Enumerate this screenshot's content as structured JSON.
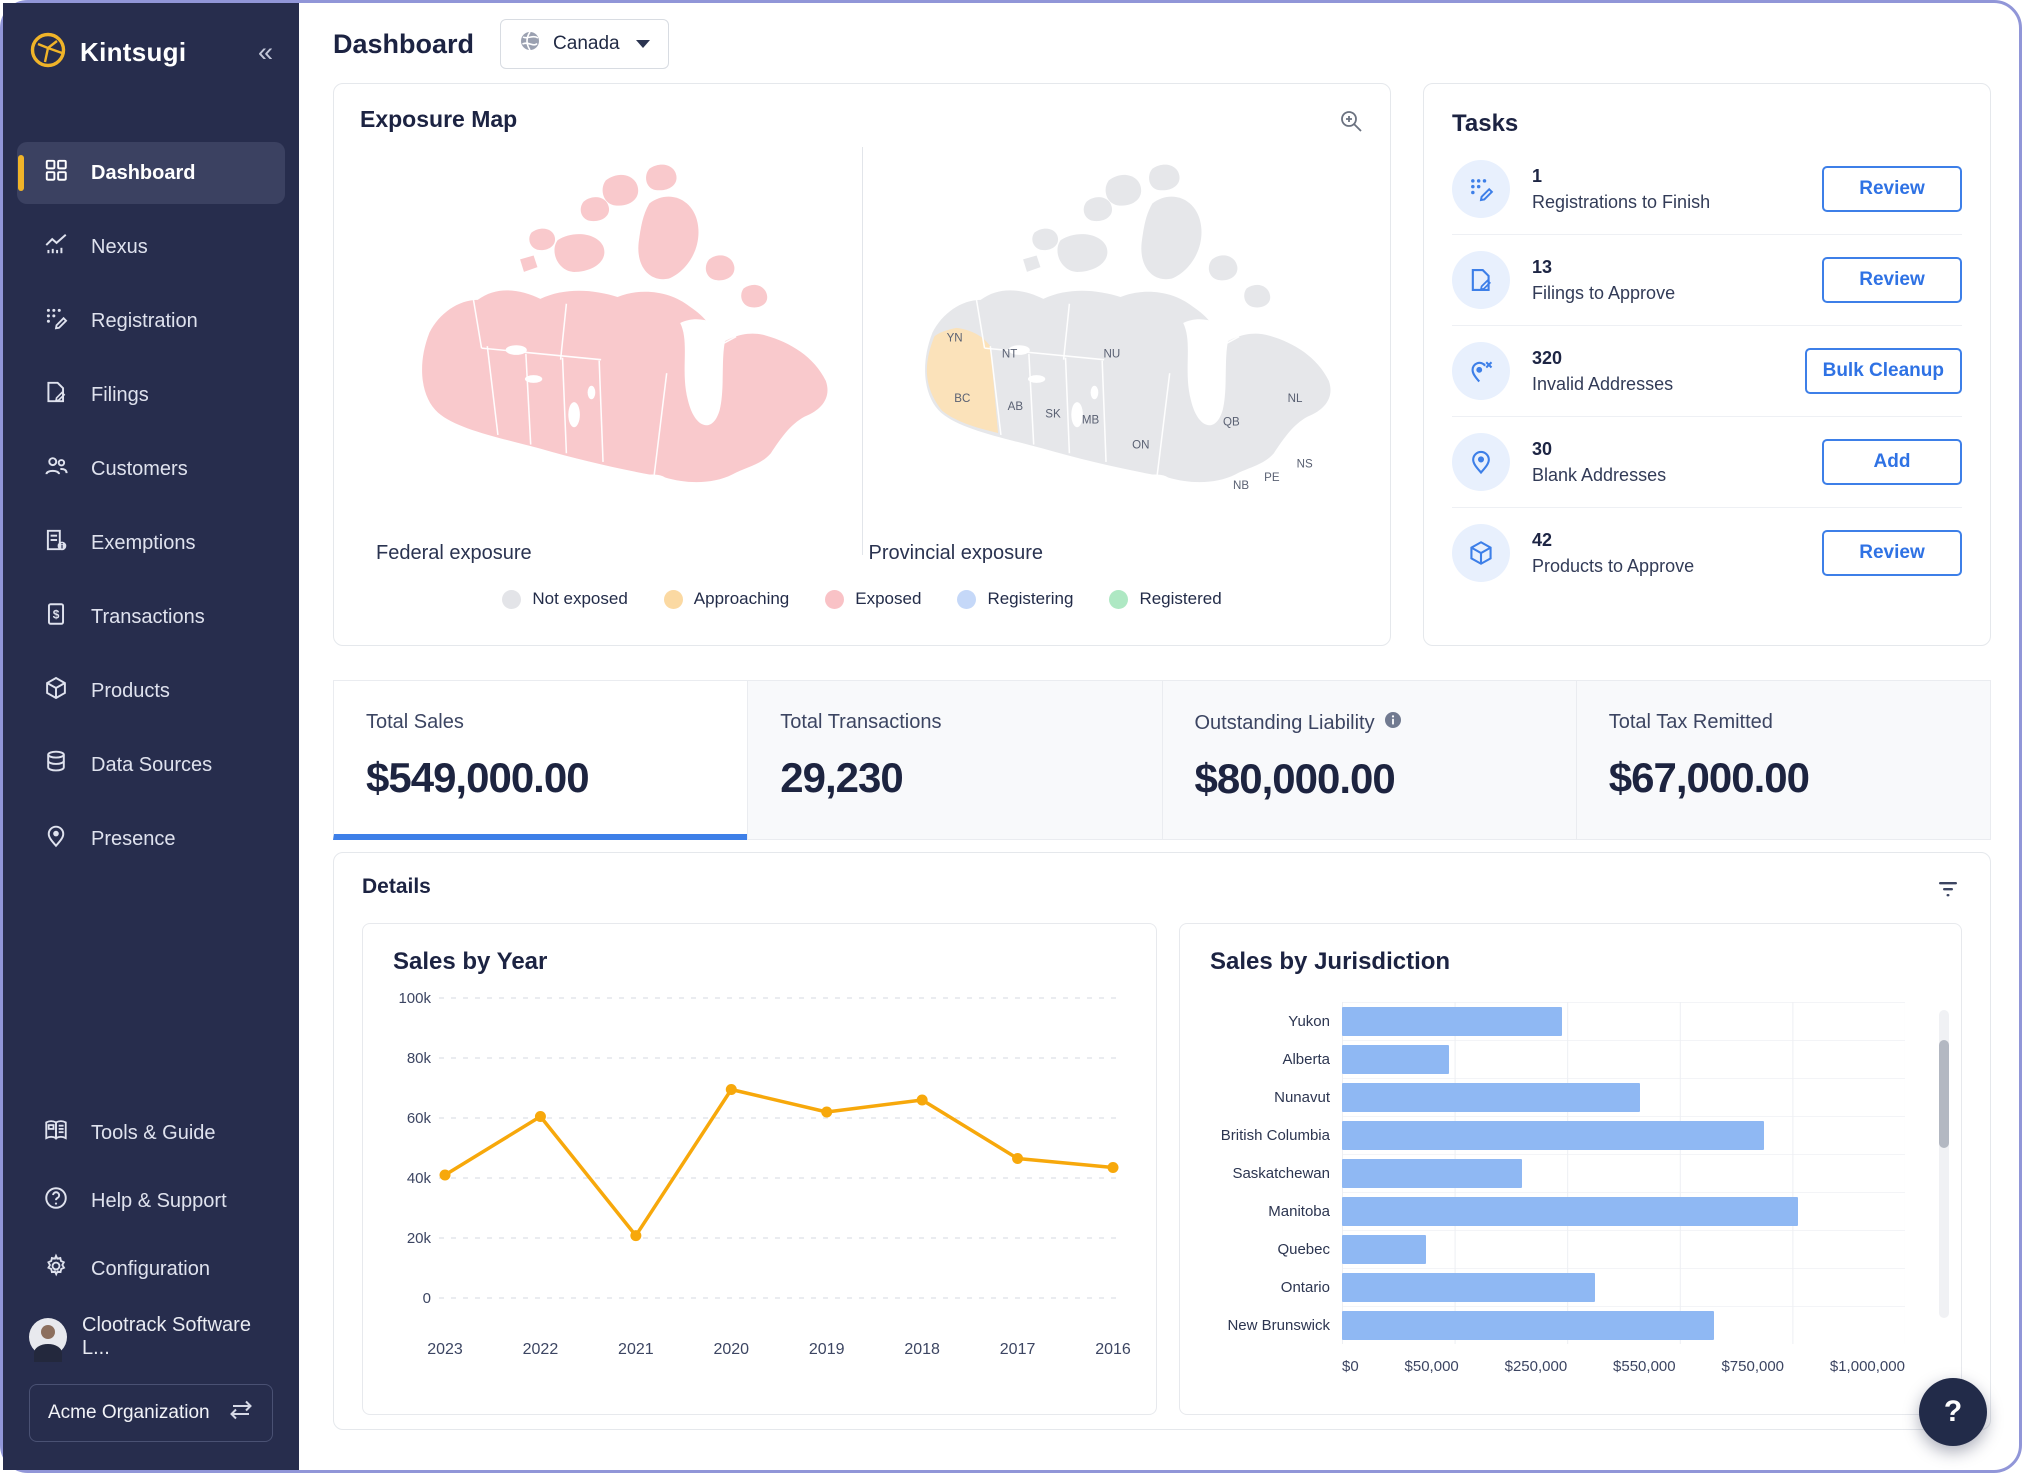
{
  "app": {
    "name": "Kintsugi",
    "logo_icon": "kintsugi-circle-icon",
    "collapse_icon": "chevrons-left-icon"
  },
  "sidebar": {
    "items": [
      {
        "label": "Dashboard",
        "icon": "dashboard",
        "active": true
      },
      {
        "label": "Nexus",
        "icon": "nexus",
        "active": false
      },
      {
        "label": "Registration",
        "icon": "registration",
        "active": false
      },
      {
        "label": "Filings",
        "icon": "filings",
        "active": false
      },
      {
        "label": "Customers",
        "icon": "customers",
        "active": false
      },
      {
        "label": "Exemptions",
        "icon": "exemptions",
        "active": false
      },
      {
        "label": "Transactions",
        "icon": "transactions",
        "active": false
      },
      {
        "label": "Products",
        "icon": "products",
        "active": false
      },
      {
        "label": "Data Sources",
        "icon": "data-sources",
        "active": false
      },
      {
        "label": "Presence",
        "icon": "presence",
        "active": false
      }
    ],
    "footer_items": [
      {
        "label": "Tools & Guide",
        "icon": "tools-guide"
      },
      {
        "label": "Help & Support",
        "icon": "help-support"
      },
      {
        "label": "Configuration",
        "icon": "configuration"
      }
    ],
    "profile": {
      "label": "Clootrack Software L...",
      "avatar_icon": "user-avatar"
    },
    "org": {
      "label": "Acme Organization",
      "swap_icon": "swap-arrows-icon"
    }
  },
  "header": {
    "title": "Dashboard",
    "country": "Canada",
    "country_icon": "globe-icon",
    "caret_icon": "caret-down-icon"
  },
  "exposure_map": {
    "title": "Exposure Map",
    "zoom_icon": "magnifier-plus-icon",
    "federal_label": "Federal exposure",
    "provincial_label": "Provincial exposure",
    "province_labels": [
      "YN",
      "NT",
      "NU",
      "BC",
      "AB",
      "SK",
      "MB",
      "ON",
      "QB",
      "NL",
      "NB",
      "PE",
      "NS"
    ],
    "federal_status": "Exposed",
    "provincial_highlight": {
      "province": "BC",
      "status": "Approaching"
    },
    "colors": {
      "federal_fill": "#f9c9cc",
      "provincial_fill": "#e6e7ea",
      "bc_fill": "#fbe2ba"
    },
    "legend": [
      {
        "label": "Not exposed",
        "color": "#e3e4e8"
      },
      {
        "label": "Approaching",
        "color": "#fbd9a2"
      },
      {
        "label": "Exposed",
        "color": "#f9c2c6"
      },
      {
        "label": "Registering",
        "color": "#c5d8f8"
      },
      {
        "label": "Registered",
        "color": "#aee8c3"
      }
    ]
  },
  "tasks": {
    "title": "Tasks",
    "items": [
      {
        "count": "1",
        "label": "Registrations to Finish",
        "action": "Review",
        "icon": "task-registration"
      },
      {
        "count": "13",
        "label": "Filings to Approve",
        "action": "Review",
        "icon": "task-filing"
      },
      {
        "count": "320",
        "label": "Invalid Addresses",
        "action": "Bulk Cleanup",
        "icon": "task-pin-x"
      },
      {
        "count": "30",
        "label": "Blank Addresses",
        "action": "Add",
        "icon": "task-pin"
      },
      {
        "count": "42",
        "label": "Products to Approve",
        "action": "Review",
        "icon": "task-box"
      }
    ]
  },
  "stats": [
    {
      "label": "Total Sales",
      "value": "$549,000.00",
      "active": true,
      "info": false
    },
    {
      "label": "Total Transactions",
      "value": "29,230",
      "active": false,
      "info": false
    },
    {
      "label": "Outstanding Liability",
      "value": "$80,000.00",
      "active": false,
      "info": true
    },
    {
      "label": "Total Tax Remitted",
      "value": "$67,000.00",
      "active": false,
      "info": false
    }
  ],
  "details": {
    "title": "Details",
    "filter_icon": "filter-icon"
  },
  "chart_data": [
    {
      "type": "line",
      "title": "Sales by Year",
      "x": [
        "2023",
        "2022",
        "2021",
        "2020",
        "2019",
        "2018",
        "2017",
        "2016"
      ],
      "values": [
        41000,
        60500,
        20800,
        69500,
        62000,
        66000,
        46500,
        43500
      ],
      "ylim": [
        0,
        100000
      ],
      "yticks": [
        0,
        20000,
        40000,
        60000,
        80000,
        100000
      ],
      "ytick_labels": [
        "0",
        "20k",
        "40k",
        "60k",
        "80k",
        "100k"
      ],
      "line_color": "#f7a80b",
      "grid": "horizontal-dashed",
      "legend_position": "none"
    },
    {
      "type": "bar",
      "orientation": "horizontal",
      "title": "Sales by Jurisdiction",
      "categories": [
        "Yukon",
        "Alberta",
        "Nunavut",
        "British Columbia",
        "Saskatchewan",
        "Manitoba",
        "Quebec",
        "Ontario",
        "New Brunswick"
      ],
      "bar_length_pct": [
        39,
        19,
        53,
        75,
        32,
        81,
        15,
        45,
        66
      ],
      "values_approx_usd": [
        275000,
        73000,
        474000,
        706000,
        200000,
        766000,
        45000,
        360000,
        621000
      ],
      "xtick_labels": [
        "$0",
        "$50,000",
        "$250,000",
        "$550,000",
        "$750,000",
        "$1,000,000"
      ],
      "bar_color": "#8fb8f3",
      "grid": "vertical",
      "scrollable": true
    }
  ],
  "help_button": {
    "label": "?"
  }
}
